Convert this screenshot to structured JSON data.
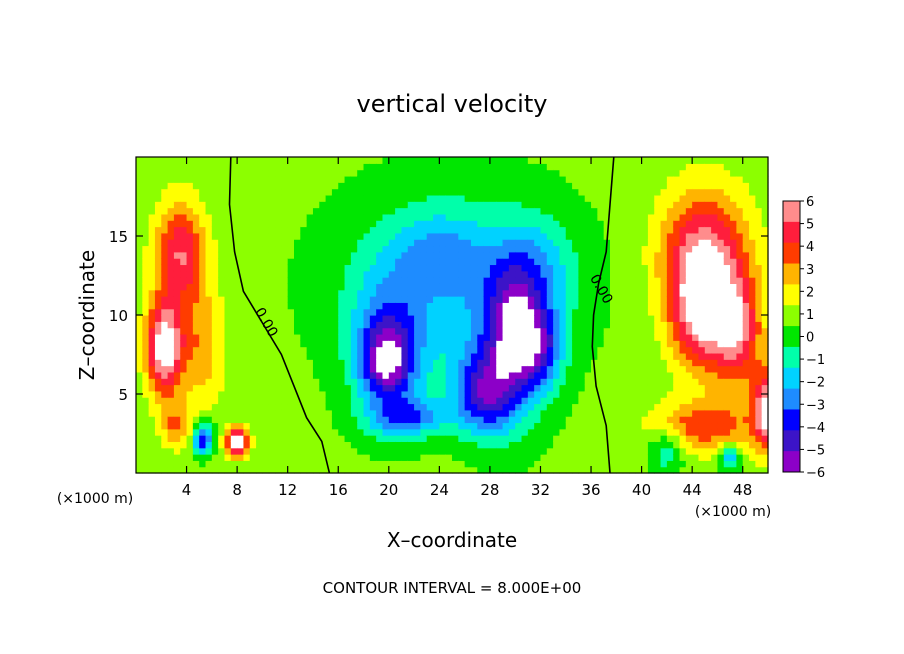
{
  "chart_data": {
    "type": "heatmap",
    "title": "vertical velocity",
    "xlabel": "X–coordinate",
    "ylabel": "Z–coordinate",
    "x_unit_left": "(×1000 m)",
    "x_unit_right": "(×1000 m)",
    "xlim": [
      0,
      50
    ],
    "ylim": [
      0,
      20
    ],
    "xticks": [
      4,
      8,
      12,
      16,
      20,
      24,
      28,
      32,
      36,
      40,
      44,
      48
    ],
    "xtick_labels": [
      "4",
      "8",
      "12",
      "16",
      "20",
      "24",
      "28",
      "32",
      "36",
      "40",
      "44",
      "48"
    ],
    "yticks": [
      5,
      10,
      15
    ],
    "ytick_labels": [
      "5",
      "10",
      "15"
    ],
    "colorbar": {
      "min": -6,
      "max": 6,
      "ticks": [
        6,
        5,
        4,
        3,
        2,
        1,
        0,
        -1,
        -2,
        -3,
        -4,
        -5,
        -6
      ],
      "tick_labels": [
        "6",
        "5",
        "4",
        "3",
        "2",
        "1",
        "0",
        "−1",
        "−2",
        "−3",
        "−4",
        "−5",
        "−6"
      ],
      "stops": [
        {
          "value": -6,
          "color": "#8c00c8"
        },
        {
          "value": -5,
          "color": "#3c14c8"
        },
        {
          "value": -4,
          "color": "#0000ff"
        },
        {
          "value": -3,
          "color": "#1e8cff"
        },
        {
          "value": -2,
          "color": "#00d2ff"
        },
        {
          "value": -1,
          "color": "#00ffaa"
        },
        {
          "value": 0,
          "color": "#00e600"
        },
        {
          "value": 1,
          "color": "#8cff00"
        },
        {
          "value": 2,
          "color": "#ffff00"
        },
        {
          "value": 3,
          "color": "#ffb400"
        },
        {
          "value": 4,
          "color": "#ff3c00"
        },
        {
          "value": 5,
          "color": "#ff1e3c"
        },
        {
          "value": 6,
          "color": "#ff8c8c"
        }
      ]
    },
    "saturated_color": "#ffffff",
    "contour_labels": [
      {
        "text": "0.00",
        "x": 10.0,
        "z": 9.4
      },
      {
        "text": "0.00",
        "x": 36.5,
        "z": 11.5
      }
    ],
    "zero_contours": [
      [
        [
          7.5,
          20
        ],
        [
          7.4,
          17
        ],
        [
          7.8,
          14
        ],
        [
          8.5,
          11.5
        ],
        [
          10,
          9.5
        ],
        [
          11.5,
          7.5
        ],
        [
          12.5,
          5.5
        ],
        [
          13.5,
          3.5
        ],
        [
          14.7,
          2
        ],
        [
          15.3,
          0
        ]
      ],
      [
        [
          37.8,
          20
        ],
        [
          37.5,
          17
        ],
        [
          37.2,
          14
        ],
        [
          36.6,
          12
        ],
        [
          36.2,
          10
        ],
        [
          36.1,
          8
        ],
        [
          36.4,
          5.5
        ],
        [
          37.2,
          3
        ],
        [
          37.5,
          0
        ]
      ]
    ],
    "field_blobs": [
      {
        "cx": 3.5,
        "cz": 14.0,
        "sx": 2.0,
        "sz": 3.2,
        "a": 4.6
      },
      {
        "cx": 2.2,
        "cz": 8.0,
        "sx": 1.4,
        "sz": 3.0,
        "a": 6.6
      },
      {
        "cx": 5.0,
        "cz": 8.0,
        "sx": 2.0,
        "sz": 4.0,
        "a": 2.4
      },
      {
        "cx": 8.0,
        "cz": 2.0,
        "sx": 0.9,
        "sz": 0.9,
        "a": 7.0
      },
      {
        "cx": 5.3,
        "cz": 2.2,
        "sx": 0.8,
        "sz": 1.0,
        "a": -5.5
      },
      {
        "cx": 3.2,
        "cz": 3.0,
        "sx": 1.3,
        "sz": 1.4,
        "a": 2.5
      },
      {
        "cx": 45.0,
        "cz": 14.0,
        "sx": 3.5,
        "sz": 4.0,
        "a": 5.0
      },
      {
        "cx": 44.5,
        "cz": 10.0,
        "sx": 2.3,
        "sz": 3.5,
        "a": 5.0
      },
      {
        "cx": 47.5,
        "cz": 9.0,
        "sx": 2.0,
        "sz": 3.5,
        "a": 5.0
      },
      {
        "cx": 45.0,
        "cz": 3.0,
        "sx": 4.0,
        "sz": 1.6,
        "a": 3.5
      },
      {
        "cx": 50.0,
        "cz": 4.0,
        "sx": 1.2,
        "sz": 2.5,
        "a": 6.0
      },
      {
        "cx": 42.0,
        "cz": 1.5,
        "sx": 1.3,
        "sz": 1.3,
        "a": -2.5
      },
      {
        "cx": 47.0,
        "cz": 1.0,
        "sx": 0.8,
        "sz": 0.8,
        "a": -3.5
      },
      {
        "cx": 25.0,
        "cz": 12.0,
        "sx": 9.0,
        "sz": 6.0,
        "a": -2.4
      },
      {
        "cx": 20.0,
        "cz": 8.0,
        "sx": 3.0,
        "sz": 4.5,
        "a": -3.5
      },
      {
        "cx": 19.8,
        "cz": 7.0,
        "sx": 1.9,
        "sz": 2.2,
        "a": -4.2
      },
      {
        "cx": 21.5,
        "cz": 3.5,
        "sx": 3.0,
        "sz": 1.2,
        "a": -3.5
      },
      {
        "cx": 29.5,
        "cz": 8.0,
        "sx": 3.0,
        "sz": 5.0,
        "a": -3.5
      },
      {
        "cx": 27.5,
        "cz": 5.0,
        "sx": 2.5,
        "sz": 2.5,
        "a": -4.5
      },
      {
        "cx": 30.0,
        "cz": 9.0,
        "sx": 1.6,
        "sz": 3.0,
        "a": -3.5
      },
      {
        "cx": 32.0,
        "cz": 8.0,
        "sx": 1.8,
        "sz": 2.5,
        "a": -3.8
      },
      {
        "cx": 24.0,
        "cz": 14.0,
        "sx": 3.5,
        "sz": 2.5,
        "a": -1.8
      },
      {
        "cx": 31.5,
        "cz": 13.0,
        "sx": 3.0,
        "sz": 3.0,
        "a": -2.2
      }
    ]
  },
  "footer": {
    "contour_interval": "CONTOUR INTERVAL = 8.000E+00"
  }
}
